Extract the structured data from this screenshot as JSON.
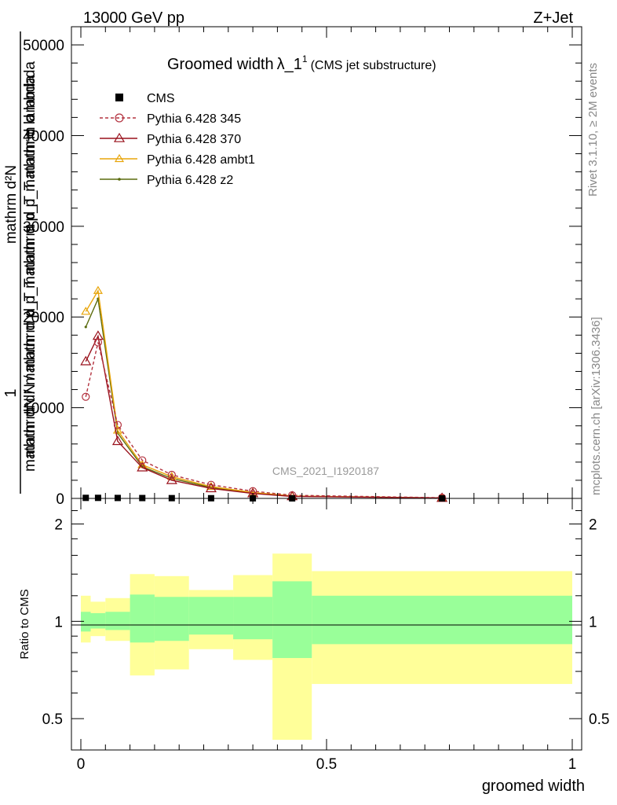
{
  "header": {
    "energy_label": "13000 GeV pp",
    "process_label": "Z+Jet"
  },
  "side_text": {
    "rivet": "Rivet 3.1.10, ≥ 2M events",
    "mcplots": "mcplots.cern.ch [arXiv:1306.3436]"
  },
  "main": {
    "title_main": "Groomed width",
    "title_lambda": "λ_1",
    "title_sup": "1",
    "title_paren": "(CMS jet substructure)",
    "watermark": "CMS_2021_I1920187",
    "ylabel_numer": "1",
    "ylabel_denom": "mathrm dN / mathrm d p_T mathrm d p_T mathrm d lambda",
    "ylabel_top": "mathrm d²N",
    "y_ticks": [
      "0",
      "10000",
      "20000",
      "30000",
      "40000",
      "50000"
    ]
  },
  "ratio": {
    "ylabel": "Ratio to CMS",
    "y_ticks": [
      "0.5",
      "1",
      "2"
    ],
    "x_ticks": [
      "0",
      "0.5",
      "1"
    ],
    "xlabel": "groomed width"
  },
  "legend": {
    "entries": [
      {
        "label": "CMS",
        "color": "#000000",
        "marker": "square",
        "dashed": false
      },
      {
        "label": "Pythia 6.428 345",
        "color": "#b3323f",
        "marker": "circle",
        "dashed": true
      },
      {
        "label": "Pythia 6.428 370",
        "color": "#99111c",
        "marker": "triangle",
        "dashed": false
      },
      {
        "label": "Pythia 6.428 ambt1",
        "color": "#e8a50a",
        "marker": "triangle",
        "dashed": false
      },
      {
        "label": "Pythia 6.428 z2",
        "color": "#5a6b0e",
        "marker": "dot",
        "dashed": false
      }
    ]
  },
  "chart_data": {
    "type": "line",
    "x_range": [
      0,
      1
    ],
    "y_range": [
      0,
      52000
    ],
    "bin_edges": [
      0,
      0.02,
      0.05,
      0.1,
      0.15,
      0.22,
      0.31,
      0.39,
      0.47,
      1.0
    ],
    "x": [
      0.01,
      0.035,
      0.075,
      0.125,
      0.185,
      0.265,
      0.35,
      0.43,
      0.735
    ],
    "cms_values": [
      60,
      60,
      50,
      40,
      30,
      20,
      10,
      5,
      1
    ],
    "series": [
      {
        "name": "Pythia 6.428 345",
        "color": "#b3323f",
        "values": [
          11200,
          17200,
          8100,
          4200,
          2600,
          1500,
          800,
          350,
          80
        ]
      },
      {
        "name": "Pythia 6.428 370",
        "color": "#99111c",
        "values": [
          15100,
          17900,
          6300,
          3400,
          2000,
          1100,
          550,
          220,
          40
        ]
      },
      {
        "name": "Pythia 6.428 ambt1",
        "color": "#e8a50a",
        "values": [
          20600,
          22900,
          7500,
          3700,
          2400,
          1300,
          650,
          270,
          50
        ]
      },
      {
        "name": "Pythia 6.428 z2",
        "color": "#5a6b0e",
        "values": [
          18900,
          22000,
          7200,
          3500,
          2200,
          1200,
          600,
          250,
          45
        ]
      }
    ],
    "ratio_bands": {
      "inner_low": [
        0.93,
        0.95,
        0.94,
        0.86,
        0.87,
        0.91,
        0.88,
        0.77,
        0.85
      ],
      "inner_high": [
        1.07,
        1.06,
        1.07,
        1.21,
        1.19,
        1.19,
        1.19,
        1.33,
        1.2
      ],
      "outer_low": [
        0.86,
        0.9,
        0.87,
        0.68,
        0.71,
        0.82,
        0.76,
        0.43,
        0.64
      ],
      "outer_high": [
        1.2,
        1.15,
        1.18,
        1.4,
        1.38,
        1.25,
        1.39,
        1.62,
        1.43
      ]
    },
    "ratio_y_range": [
      0.4,
      2.4
    ],
    "ratio_y_scale": "log",
    "grid": false,
    "legend_position": "top-left"
  }
}
